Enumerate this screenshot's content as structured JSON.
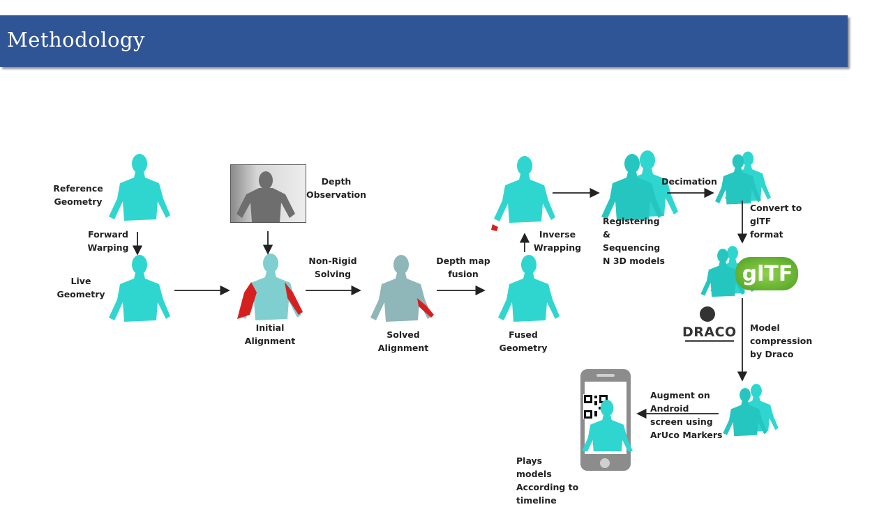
{
  "header": {
    "title": "Methodology"
  },
  "diagram": {
    "labels": {
      "reference_geometry": "Reference Geometry",
      "forward_warping": "Forward Warping",
      "live_geometry": "Live Geometry",
      "depth_observation": "Depth Observation",
      "initial_alignment": "Initial Alignment",
      "non_rigid_solving": "Non-Rigid Solving",
      "solved_alignment": "Solved Alignment",
      "depth_map_fusion": "Depth map fusion",
      "fused_geometry": "Fused Geometry",
      "inverse_wrapping": "Inverse Wrapping",
      "registering_sequencing": "Registering & Sequencing N 3D models",
      "decimation": "Decimation",
      "convert_gltf": "Convert to glTF format",
      "gltf_logo": "glTF",
      "draco_logo": "DRACO",
      "model_compression": "Model compression by Draco",
      "augment_android": "Augment on Android screen using ArUco Markers",
      "plays_models": "Plays models According to timeline"
    },
    "colors": {
      "figure": "#2fd6d0",
      "error": "#d62020",
      "gltf": "#6ab534",
      "header": "#2f5597"
    }
  }
}
